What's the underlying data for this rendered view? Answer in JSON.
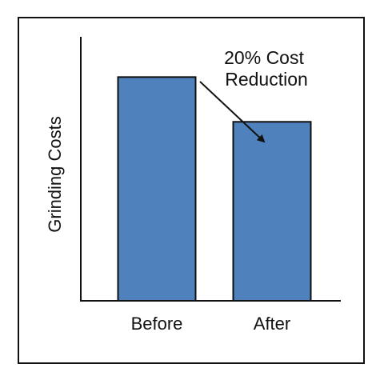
{
  "chart_data": {
    "type": "bar",
    "categories": [
      "Before",
      "After"
    ],
    "values": [
      100,
      80
    ],
    "ylabel": "Grinding Costs",
    "xlabel": "",
    "ylim": [
      0,
      118
    ],
    "grid": false,
    "bar_color": "#4f81bd",
    "axis_color": "#111111",
    "annotation": {
      "lines": [
        "20% Cost",
        "Reduction"
      ]
    }
  }
}
